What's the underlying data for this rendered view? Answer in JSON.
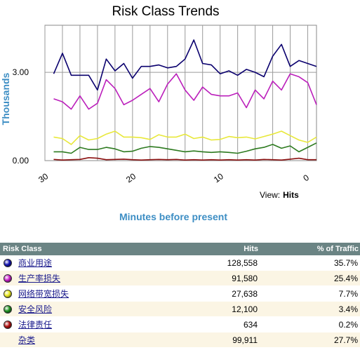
{
  "chart_data": {
    "type": "line",
    "title": "Risk Class Trends",
    "ylabel": "Thousands",
    "xlabel": "Minutes before present",
    "x_ticks": [
      30,
      20,
      10,
      0
    ],
    "xlim": [
      30,
      -1
    ],
    "ylim": [
      0,
      4.6
    ],
    "y_ticks": [
      {
        "value": 0,
        "label": "0.00"
      },
      {
        "value": 3,
        "label": "3.00"
      }
    ],
    "grid": true,
    "x": [
      29,
      28,
      27,
      26,
      25,
      24,
      23,
      22,
      21,
      20,
      19,
      18,
      17,
      16,
      15,
      14,
      13,
      12,
      11,
      10,
      9,
      8,
      7,
      6,
      5,
      4,
      3,
      2,
      1,
      0,
      -1
    ],
    "series": [
      {
        "color": "#0a006e",
        "values": [
          2.95,
          3.65,
          2.9,
          2.9,
          2.9,
          2.4,
          3.45,
          3.05,
          3.3,
          2.8,
          3.2,
          3.2,
          3.25,
          3.15,
          3.2,
          3.45,
          4.1,
          3.3,
          3.25,
          2.95,
          3.05,
          2.9,
          3.1,
          3.0,
          2.85,
          3.55,
          3.95,
          3.2,
          3.4,
          3.3,
          3.2
        ]
      },
      {
        "color": "#bb1fbb",
        "values": [
          2.1,
          2.0,
          1.75,
          2.2,
          1.75,
          1.95,
          2.75,
          2.45,
          1.9,
          2.05,
          2.25,
          2.45,
          2.0,
          2.6,
          2.95,
          2.4,
          2.05,
          2.5,
          2.25,
          2.2,
          2.2,
          2.3,
          1.8,
          2.4,
          2.1,
          2.7,
          2.4,
          2.95,
          2.85,
          2.65,
          1.9
        ]
      },
      {
        "color": "#e8e83a",
        "values": [
          0.8,
          0.75,
          0.55,
          0.85,
          0.7,
          0.75,
          0.9,
          1.0,
          0.8,
          0.8,
          0.78,
          0.72,
          0.88,
          0.8,
          0.8,
          0.9,
          0.75,
          0.8,
          0.7,
          0.72,
          0.82,
          0.78,
          0.8,
          0.74,
          0.82,
          0.9,
          1.0,
          0.85,
          0.7,
          0.62,
          0.8
        ]
      },
      {
        "color": "#2d7a1f",
        "values": [
          0.3,
          0.3,
          0.25,
          0.45,
          0.38,
          0.38,
          0.45,
          0.4,
          0.3,
          0.32,
          0.42,
          0.48,
          0.45,
          0.4,
          0.35,
          0.3,
          0.33,
          0.3,
          0.28,
          0.3,
          0.28,
          0.25,
          0.32,
          0.4,
          0.45,
          0.55,
          0.42,
          0.5,
          0.3,
          0.45,
          0.6
        ]
      },
      {
        "color": "#8b1010",
        "values": [
          0.04,
          0.02,
          0.03,
          0.04,
          0.1,
          0.08,
          0.03,
          0.04,
          0.05,
          0.03,
          0.02,
          0.03,
          0.04,
          0.03,
          0.04,
          0.02,
          0.03,
          0.02,
          0.03,
          0.02,
          0.03,
          0.02,
          0.03,
          0.02,
          0.04,
          0.03,
          0.02,
          0.05,
          0.08,
          0.03,
          0.03
        ]
      }
    ]
  },
  "view": {
    "label": "View:",
    "value": "Hits"
  },
  "table": {
    "headers": {
      "name": "Risk Class",
      "hits": "Hits",
      "pct": "% of Traffic"
    },
    "rows": [
      {
        "name": "商业用途",
        "hits": "128,558",
        "pct": "35.7%",
        "color": "#1010b0"
      },
      {
        "name": "生产率损失",
        "hits": "91,580",
        "pct": "25.4%",
        "color": "#c61ec6"
      },
      {
        "name": "网络带宽损失",
        "hits": "27,638",
        "pct": "7.7%",
        "color": "#e8e820"
      },
      {
        "name": "安全风险",
        "hits": "12,100",
        "pct": "3.4%",
        "color": "#1d8f1d"
      },
      {
        "name": "法律责任",
        "hits": "634",
        "pct": "0.2%",
        "color": "#b01010"
      },
      {
        "name": "杂类",
        "hits": "99,911",
        "pct": "27.7%",
        "color": ""
      }
    ]
  }
}
